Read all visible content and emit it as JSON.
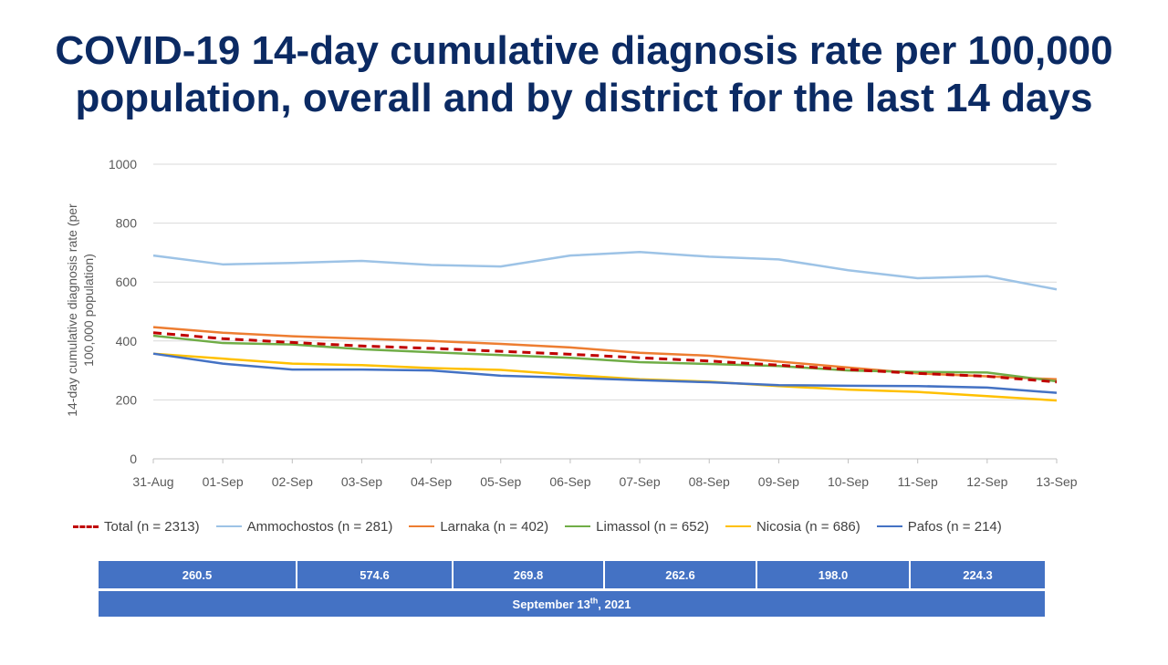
{
  "title": {
    "line1": "COVID-19 14-day cumulative diagnosis rate per 100,000",
    "line2": "population, overall and by district for the last 14 days"
  },
  "chart_data": {
    "type": "line",
    "ylabel_line1": "14-day cumulative diagnosis rate (per",
    "ylabel_line2": "100,000 population)",
    "xlabel": "",
    "ylim": [
      0,
      1000
    ],
    "yticks": [
      0,
      200,
      400,
      600,
      800,
      1000
    ],
    "grid": true,
    "legend_position": "bottom",
    "categories": [
      "31-Aug",
      "01-Sep",
      "02-Sep",
      "03-Sep",
      "04-Sep",
      "05-Sep",
      "06-Sep",
      "07-Sep",
      "08-Sep",
      "09-Sep",
      "10-Sep",
      "11-Sep",
      "12-Sep",
      "13-Sep"
    ],
    "series": [
      {
        "name": "Total (n = 2313)",
        "color": "#c00000",
        "dashed": true,
        "values": [
          428,
          408,
          395,
          383,
          375,
          365,
          355,
          343,
          332,
          318,
          303,
          290,
          280,
          261
        ]
      },
      {
        "name": "Ammochostos (n = 281)",
        "color": "#9dc3e6",
        "dashed": false,
        "values": [
          690,
          660,
          665,
          672,
          658,
          653,
          690,
          702,
          686,
          677,
          640,
          613,
          620,
          575
        ]
      },
      {
        "name": "Larnaka (n = 402)",
        "color": "#ed7d31",
        "dashed": false,
        "values": [
          447,
          428,
          416,
          408,
          400,
          390,
          378,
          360,
          350,
          330,
          310,
          290,
          280,
          270
        ]
      },
      {
        "name": "Limassol (n = 652)",
        "color": "#70ad47",
        "dashed": false,
        "values": [
          418,
          393,
          388,
          372,
          362,
          352,
          343,
          328,
          322,
          315,
          300,
          295,
          293,
          263
        ]
      },
      {
        "name": "Nicosia (n = 686)",
        "color": "#ffc000",
        "dashed": false,
        "values": [
          357,
          340,
          323,
          318,
          308,
          302,
          285,
          270,
          262,
          247,
          235,
          227,
          213,
          198
        ]
      },
      {
        "name": "Pafos (n = 214)",
        "color": "#4472c4",
        "dashed": false,
        "values": [
          357,
          323,
          303,
          303,
          300,
          282,
          275,
          267,
          260,
          250,
          248,
          247,
          242,
          224
        ]
      }
    ]
  },
  "summary": {
    "values": [
      "260.5",
      "574.6",
      "269.8",
      "262.6",
      "198.0",
      "224.3"
    ],
    "date_prefix": "September 13",
    "date_sup": "th",
    "date_suffix": ", 2021"
  }
}
